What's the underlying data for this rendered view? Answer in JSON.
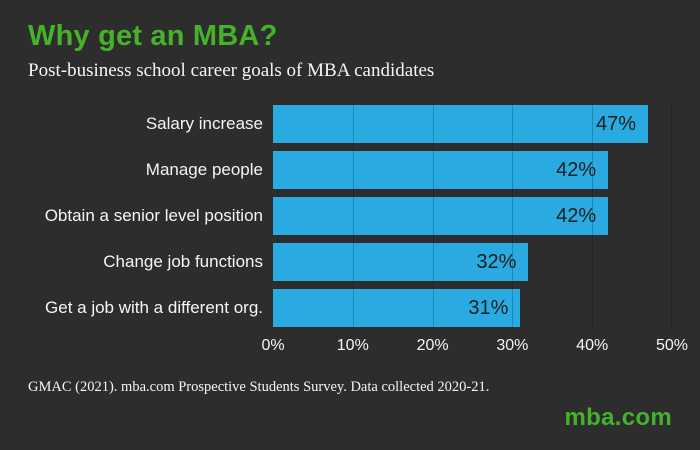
{
  "header": {
    "title": "Why get an MBA?",
    "subtitle": "Post-business school career goals of MBA candidates"
  },
  "chart_data": {
    "type": "bar",
    "orientation": "horizontal",
    "title": "Post-business school career goals of MBA candidates",
    "categories": [
      "Salary increase",
      "Manage people",
      "Obtain a senior level position",
      "Change job functions",
      "Get a job with a different org."
    ],
    "values": [
      47,
      42,
      42,
      32,
      31
    ],
    "value_labels": [
      "47%",
      "42%",
      "42%",
      "32%",
      "31%"
    ],
    "x_ticks": [
      "0%",
      "10%",
      "20%",
      "30%",
      "40%",
      "50%"
    ],
    "xlim": [
      0,
      50
    ],
    "xlabel": "",
    "ylabel": "",
    "grid": true,
    "legend": false
  },
  "footer": {
    "source": "GMAC (2021). mba.com Prospective Students Survey. Data collected 2020-21.",
    "logo": "mba.com"
  },
  "colors": {
    "background": "#2d2d2d",
    "accent_green": "#45b229",
    "bar_cyan": "#29abe2",
    "text_light": "#f5f5f5",
    "bar_label_dark": "#1d1d1d"
  }
}
